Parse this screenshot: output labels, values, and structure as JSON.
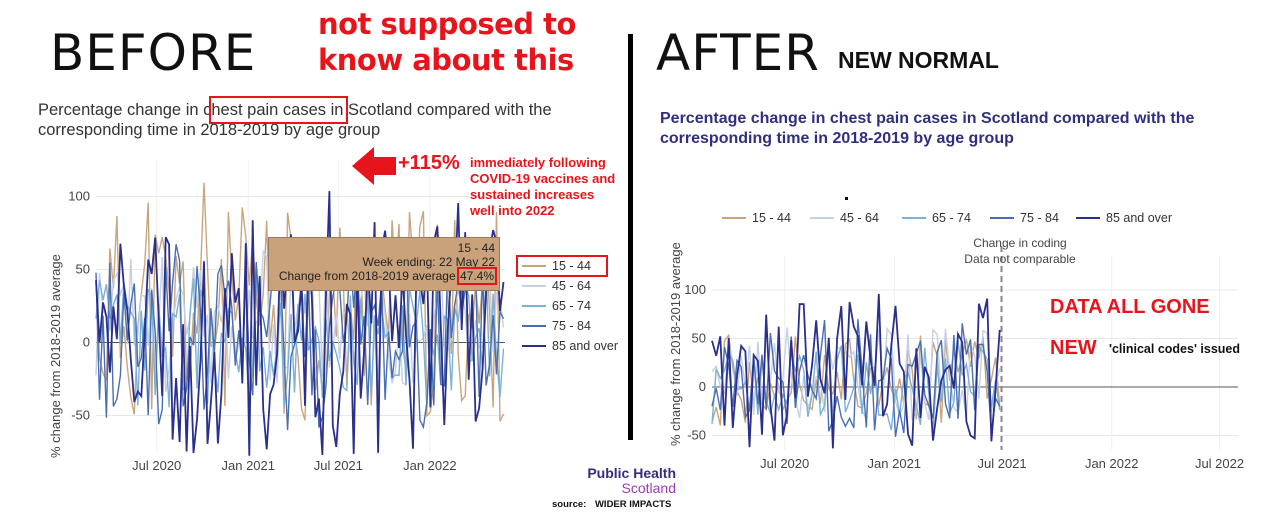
{
  "before": {
    "heading": "BEFORE",
    "note_line1": "not supposed to",
    "note_line2": "know about this",
    "chart_title_line1": "Percentage change in chest pain cases in Scotland compared with the",
    "chart_title_line2": "corresponding time in 2018-2019 by age group",
    "annotation_pct": "+115%",
    "annotation_text": [
      "immediately following",
      "COVID-19 vaccines and",
      "sustained increases",
      "well into 2022"
    ],
    "tooltip": {
      "series": "15 - 44",
      "week": "Week ending: 22 May 22",
      "change_label": "Change from 2018-2019 average",
      "change_value": "47.4%"
    }
  },
  "after": {
    "heading": "AFTER",
    "subheading": "NEW NORMAL",
    "chart_title_line1": "Percentage change in chest pain cases in Scotland compared with the",
    "chart_title_line2": "corresponding time in 2018-2019 by age group",
    "coding_note_line1": "Change in coding",
    "coding_note_line2": "Data not comparable",
    "data_gone": "DATA ALL GONE",
    "new_word": "NEW",
    "new_codes": "'clinical codes' issued"
  },
  "footer": {
    "logo_line1": "Public Health",
    "logo_line2": "Scotland",
    "source_label": "source:",
    "source_value": "WIDER IMPACTS"
  },
  "colors": {
    "s1544": "#c9a57f",
    "s4564": "#c5d0e3",
    "s6574": "#7bb0d8",
    "s7584": "#4a6fb0",
    "s85": "#2a2f8c",
    "red": "#e8141b",
    "tooltip_bg": "#c9a17a"
  },
  "chart_data": [
    {
      "type": "line",
      "title": "Percentage change in chest pain cases in Scotland compared with the corresponding time in 2018-2019 by age group",
      "ylabel": "% change from 2018-2019 average",
      "x_ticks": [
        "Jul 2020",
        "Jan 2021",
        "Jul 2021",
        "Jan 2022"
      ],
      "x_range": [
        "2020-03-01",
        "2022-06-01"
      ],
      "y_ticks": [
        -50,
        0,
        50,
        100
      ],
      "ylim": [
        -75,
        125
      ],
      "legend": [
        "15 - 44",
        "45 - 64",
        "65 - 74",
        "75 - 84",
        "85 and over"
      ],
      "legend_position": "right",
      "series_seeds": [
        11,
        23,
        37,
        41,
        59
      ],
      "series_ranges": [
        [
          -55,
          120
        ],
        [
          -35,
          80
        ],
        [
          -45,
          60
        ],
        [
          -60,
          90
        ],
        [
          -80,
          115
        ]
      ]
    },
    {
      "type": "line",
      "title": "Percentage change in chest pain cases in Scotland compared with the corresponding time in 2018-2019 by age group",
      "ylabel": "% change from 2018-2019 average",
      "x_ticks": [
        "Jul 2020",
        "Jan 2021",
        "Jul 2021",
        "Jan 2022",
        "Jul 2022"
      ],
      "x_range": [
        "2020-03-01",
        "2022-08-01"
      ],
      "data_end": "2021-06-30",
      "coding_change_date": "2021-06-30",
      "y_ticks": [
        -50,
        0,
        50,
        100
      ],
      "ylim": [
        -65,
        135
      ],
      "legend": [
        "15 - 44",
        "45 - 64",
        "65 - 74",
        "75 - 84",
        "85 and over"
      ],
      "legend_position": "top",
      "series_seeds": [
        71,
        83,
        97,
        103,
        113
      ],
      "series_ranges": [
        [
          -40,
          70
        ],
        [
          -35,
          80
        ],
        [
          -45,
          60
        ],
        [
          -55,
          75
        ],
        [
          -65,
          120
        ]
      ]
    }
  ]
}
